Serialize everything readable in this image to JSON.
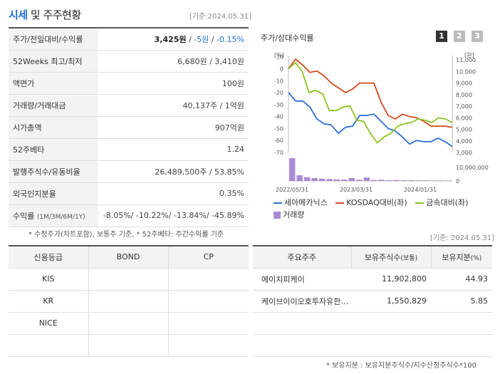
{
  "header": {
    "title_accent": "시세",
    "title_rest": " 및 주주현황",
    "date": "[기준:2024.05.31]"
  },
  "quote": {
    "price_row": {
      "label": "주가/전일대비/수익률",
      "price": "3,425원",
      "sep1": " / ",
      "change": "-5원",
      "sep2": " / ",
      "rate": "-0.15%"
    },
    "week52": {
      "label": "52Weeks 최고/최저",
      "value": "6,680원 / 3,410원"
    },
    "par": {
      "label": "액면가",
      "value": "100원"
    },
    "volume": {
      "label": "거래량/거래대금",
      "value": "40,137주 / 1억원"
    },
    "mktcap": {
      "label": "시가총액",
      "value": "907억원"
    },
    "beta": {
      "label": "52주베타",
      "value": "1.24"
    },
    "shares": {
      "label": "발행주식수/유동비율",
      "value": "26,489,500주 / 53.85%"
    },
    "foreign": {
      "label": "외국인지분율",
      "value": "0.35%"
    },
    "returns": {
      "label": "수익률",
      "label_sub": "(1M/3M/6M/1Y)",
      "value": "-8.05%/ -10.22%/ -13.84%/ -45.89%"
    }
  },
  "notes": {
    "note1": "* 수정주가(차트포함), 보통주 기준, * 52주베타: 주간수익률 기준",
    "date_mid": "[기준: 2024.05.31]",
    "note2": "* 보유지분 : 보유지분주식수/지수산정주식수*100"
  },
  "chart_tabs": {
    "title": "주가/상대수익률",
    "tabs": [
      "1",
      "2",
      "3"
    ],
    "active": 0
  },
  "credit": {
    "headers": [
      "신용등급",
      "BOND",
      "CP"
    ],
    "rows": [
      [
        "KIS",
        "",
        ""
      ],
      [
        "KR",
        "",
        ""
      ],
      [
        "NICE",
        "",
        ""
      ],
      [
        "",
        "",
        ""
      ]
    ]
  },
  "holders": {
    "headers": [
      "주요주주",
      "보유주식수",
      "(보통)",
      "보유지분",
      "(%)"
    ],
    "rows": [
      {
        "name": "에이치피케이",
        "shares": "11,902,800",
        "pct": "44.93"
      },
      {
        "name": "케이브이이오호투자유한…",
        "shares": "1,550,829",
        "pct": "5.85"
      },
      {
        "name": "",
        "shares": "",
        "pct": ""
      },
      {
        "name": "",
        "shares": "",
        "pct": ""
      }
    ]
  },
  "chart_data": {
    "type": "line",
    "left_unit": "[%]",
    "right_unit": "[원]",
    "left_ylim": [
      -70,
      11
    ],
    "left_ticks": [
      "11,000",
      "10,000",
      "9,000",
      "8,000",
      "7,000",
      "6,000",
      "5,000",
      "4,000",
      "3,000"
    ],
    "left_tick_labels": [
      "10",
      "0",
      "-10",
      "-20",
      "-30",
      "-40",
      "-50",
      "-60",
      "-70"
    ],
    "right_tick_labels": [
      "11,000",
      "10,000",
      "9,000",
      "8,000",
      "7,000",
      "6,000",
      "5,000",
      "4,000",
      "3,000"
    ],
    "volume_tick_labels": [
      "10,000,000",
      "0"
    ],
    "x_tick_labels": [
      "2022/05/31",
      "2023/03/31",
      "2024/01/31"
    ],
    "legend": [
      {
        "name": "세아메카닉스",
        "color": "#2f6fd6",
        "kind": "line"
      },
      {
        "name": "KOSDAQ대비(좌)",
        "color": "#d24a1c",
        "kind": "line"
      },
      {
        "name": "금속대비(좌)",
        "color": "#8cc21f",
        "kind": "line"
      },
      {
        "name": "거래량",
        "color": "#a98ad6",
        "kind": "bar"
      }
    ],
    "series": [
      {
        "name": "세아메카닉스",
        "color": "#2f6fd6",
        "values": [
          -20,
          -27,
          -27,
          -32,
          -42,
          -46,
          -47,
          -54,
          -49,
          -48,
          -39,
          -39,
          -38,
          -44,
          -50,
          -52,
          -57,
          -63,
          -60,
          -61,
          -61,
          -58,
          -61,
          -65
        ]
      },
      {
        "name": "KOSDAQ대비(좌)",
        "color": "#d24a1c",
        "values": [
          0,
          8,
          3,
          -3,
          -2,
          -6,
          -12,
          -16,
          -20,
          -17,
          -12,
          -12,
          -12,
          -28,
          -39,
          -42,
          -38,
          -40,
          -41,
          -44,
          -48,
          -48,
          -48,
          -49
        ]
      },
      {
        "name": "금속대비(좌)",
        "color": "#8cc21f",
        "values": [
          0,
          5,
          -2,
          -20,
          -18,
          -21,
          -35,
          -35,
          -32,
          -31,
          -43,
          -44,
          -54,
          -62,
          -57,
          -54,
          -48,
          -46,
          -45,
          -42,
          -43,
          -45,
          -41,
          -42,
          -45
        ]
      },
      {
        "name": "거래량",
        "color": "#a98ad6",
        "values": [
          12000000,
          3000000,
          2000000,
          1500000,
          1200000,
          1000000,
          800000,
          700000,
          1500000,
          600000,
          1800000,
          500000,
          600000,
          400000,
          500000,
          400000,
          350000,
          300000,
          300000,
          250000,
          300000,
          250000
        ]
      }
    ]
  }
}
